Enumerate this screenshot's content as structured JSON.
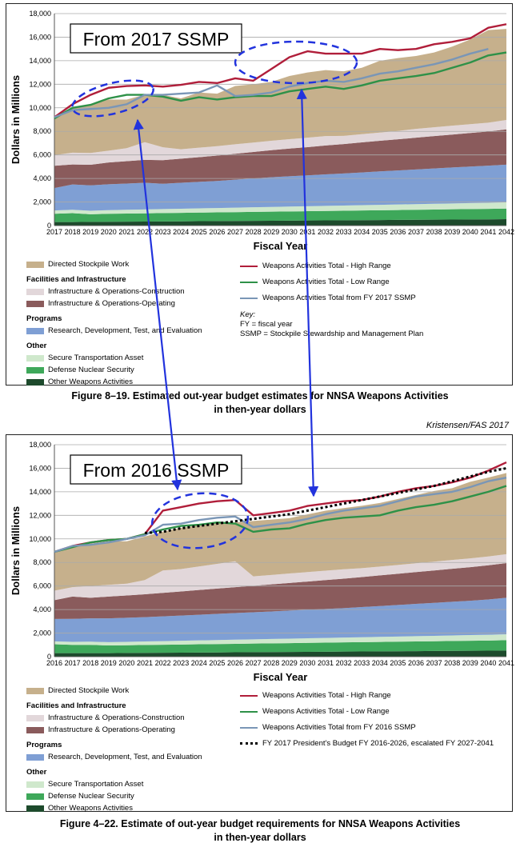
{
  "credit": "Kristensen/FAS 2017",
  "charts": [
    {
      "stamp": "From 2017 SSMP",
      "caption_line1": "Figure 8–19.  Estimated out-year budget estimates for NNSA Weapons Activities",
      "caption_line2": "in then-year dollars",
      "ylabel": "Dollars in Millions",
      "xlabel": "Fiscal Year",
      "legend": {
        "dsw": "Directed Stockpile Work",
        "fac_header": "Facilities and Infrastructure",
        "ioc": "Infrastructure & Operations-Construction",
        "ioo": "Infrastructure & Operations-Operating",
        "prog_header": "Programs",
        "rdte": "Research, Development, Test, and Evaluation",
        "other_header": "Other",
        "sta": "Secure Transportation Asset",
        "dns": "Defense Nuclear Security",
        "owa": "Other Weapons Activities",
        "high": "Weapons Activities Total - High Range",
        "low": "Weapons Activities Total - Low Range",
        "ssmp": "Weapons Activities Total from FY 2017 SSMP",
        "key_title": "Key:",
        "key_fy": "FY = fiscal year",
        "key_ssmp": "SSMP = Stockpile Stewardship and Management Plan"
      }
    },
    {
      "stamp": "From 2016 SSMP",
      "caption_line1": "Figure 4–22.  Estimate of out-year budget requirements for NNSA Weapons Activities",
      "caption_line2": "in then-year dollars",
      "ylabel": "Dollars in Millions",
      "xlabel": "Fiscal Year",
      "legend": {
        "dsw": "Directed Stockpile Work",
        "fac_header": "Facilities and Infrastructure",
        "ioc": "Infrastructure & Operations-Construction",
        "ioo": "Infrastructure & Operations-Operating",
        "prog_header": "Programs",
        "rdte": "Research, Development, Test, and Evaluation",
        "other_header": "Other",
        "sta": "Secure Transportation Asset",
        "dns": "Defense Nuclear Security",
        "owa": "Other Weapons Activities",
        "high": "Weapons Activities Total - High Range",
        "low": "Weapons Activities Total - Low Range",
        "ssmp": "Weapons Activities Total from FY 2016 SSMP",
        "pb": "FY 2017 President's Budget FY 2016-2026, escalated FY 2027-2041"
      }
    }
  ],
  "colors": {
    "owa": "#1d4a2c",
    "dns": "#3ea85a",
    "sta": "#cfe8cc",
    "rdte": "#7f9fd4",
    "ioo": "#8a5b5c",
    "ioc": "#e2d7da",
    "dsw": "#c6b08c",
    "high": "#b01e3a",
    "low": "#2e9148",
    "ssmp": "#7a96b6",
    "pb": "#000000",
    "annotation": "#2233dd",
    "grid": "#aaaaaa"
  },
  "chart_data": [
    {
      "type": "area",
      "title": "",
      "xlabel": "Fiscal Year",
      "ylabel": "Dollars in Millions",
      "ylim": [
        0,
        18000
      ],
      "yticks": [
        "0",
        "2,000",
        "4,000",
        "6,000",
        "8,000",
        "10,000",
        "12,000",
        "14,000",
        "16,000",
        "18,000"
      ],
      "grid": true,
      "x": [
        "2017",
        "2018",
        "2019",
        "2020",
        "2021",
        "2022",
        "2023",
        "2024",
        "2025",
        "2026",
        "2027",
        "2028",
        "2029",
        "2030",
        "2031",
        "2032",
        "2033",
        "2034",
        "2035",
        "2036",
        "2037",
        "2038",
        "2039",
        "2040",
        "2041",
        "2042"
      ],
      "stacked_series": [
        {
          "name": "Other Weapons Activities",
          "key": "owa",
          "values": [
            300,
            300,
            310,
            320,
            330,
            340,
            350,
            360,
            370,
            380,
            390,
            400,
            410,
            420,
            430,
            440,
            450,
            460,
            470,
            480,
            490,
            500,
            510,
            520,
            530,
            540
          ]
        },
        {
          "name": "Defense Nuclear Security",
          "key": "dns",
          "values": [
            700,
            750,
            650,
            680,
            690,
            700,
            710,
            720,
            730,
            740,
            750,
            760,
            770,
            780,
            790,
            800,
            810,
            820,
            830,
            840,
            850,
            860,
            870,
            880,
            890,
            900
          ]
        },
        {
          "name": "Secure Transportation Asset",
          "key": "sta",
          "values": [
            280,
            290,
            300,
            310,
            320,
            330,
            340,
            350,
            360,
            370,
            380,
            390,
            400,
            410,
            420,
            430,
            440,
            450,
            460,
            470,
            480,
            490,
            500,
            510,
            520,
            530
          ]
        },
        {
          "name": "Research, Development, Test, and Evaluation",
          "key": "rdte",
          "values": [
            1900,
            2150,
            2150,
            2200,
            2230,
            2260,
            2150,
            2200,
            2250,
            2300,
            2380,
            2450,
            2520,
            2580,
            2620,
            2680,
            2720,
            2780,
            2840,
            2890,
            2940,
            3000,
            3050,
            3100,
            3150,
            3200
          ]
        },
        {
          "name": "Infrastructure & Operations-Operating",
          "key": "ioo",
          "values": [
            1900,
            1700,
            1750,
            1850,
            1900,
            1950,
            2000,
            2050,
            2100,
            2150,
            2200,
            2250,
            2300,
            2350,
            2400,
            2450,
            2500,
            2550,
            2600,
            2650,
            2700,
            2750,
            2800,
            2850,
            2900,
            3000
          ]
        },
        {
          "name": "Infrastructure & Operations-Construction",
          "key": "ioc",
          "values": [
            900,
            1000,
            1000,
            1000,
            1100,
            1500,
            1100,
            800,
            800,
            800,
            800,
            800,
            800,
            800,
            800,
            800,
            700,
            700,
            700,
            700,
            750,
            750,
            750,
            750,
            750,
            800
          ]
        },
        {
          "name": "Directed Stockpile Work",
          "key": "dsw",
          "values": [
            3200,
            3800,
            4140,
            4340,
            4130,
            4030,
            4450,
            4320,
            4690,
            4460,
            4950,
            4950,
            5000,
            5360,
            5540,
            5600,
            5480,
            5640,
            6090,
            6190,
            6190,
            6350,
            6720,
            7190,
            7860,
            7730
          ]
        }
      ],
      "line_series": [
        {
          "name": "Weapons Activities Total - High Range",
          "key": "high",
          "values": [
            9200,
            10300,
            11100,
            11700,
            11850,
            11900,
            11800,
            11950,
            12200,
            12100,
            12500,
            12300,
            13300,
            14300,
            14800,
            14600,
            14600,
            14600,
            15000,
            14900,
            15000,
            15400,
            15600,
            15900,
            16800,
            17100
          ]
        },
        {
          "name": "Weapons Activities Total - Low Range",
          "key": "low",
          "values": [
            9100,
            10000,
            10250,
            10800,
            11100,
            11100,
            10950,
            10600,
            10900,
            10700,
            10900,
            11000,
            11000,
            11400,
            11600,
            11800,
            11600,
            11900,
            12300,
            12500,
            12700,
            12950,
            13400,
            13850,
            14450,
            14700
          ]
        },
        {
          "name": "Weapons Activities Total from FY 2017 SSMP",
          "key": "ssmp",
          "values": [
            9200,
            9800,
            9900,
            10000,
            10300,
            11100,
            11100,
            11200,
            11300,
            11900,
            11000,
            11100,
            11300,
            11800,
            12100,
            12300,
            12200,
            12500,
            12900,
            13100,
            13400,
            13700,
            14100,
            14600,
            15000,
            null
          ]
        }
      ],
      "annotations": [
        "ellipse around FY2018-2023 totals",
        "ellipse around FY2027-2034 totals"
      ]
    },
    {
      "type": "area",
      "title": "",
      "xlabel": "Fiscal Year",
      "ylabel": "Dollars in Millions",
      "ylim": [
        0,
        18000
      ],
      "yticks": [
        "0",
        "2,000",
        "4,000",
        "6,000",
        "8,000",
        "10,000",
        "12,000",
        "14,000",
        "16,000",
        "18,000"
      ],
      "grid": true,
      "x": [
        "2016",
        "2017",
        "2018",
        "2019",
        "2020",
        "2021",
        "2022",
        "2023",
        "2024",
        "2025",
        "2026",
        "2027",
        "2028",
        "2029",
        "2030",
        "2031",
        "2032",
        "2033",
        "2034",
        "2035",
        "2036",
        "2037",
        "2038",
        "2039",
        "2040",
        "2041"
      ],
      "stacked_series": [
        {
          "name": "Other Weapons Activities",
          "key": "owa",
          "values": [
            300,
            300,
            300,
            300,
            310,
            320,
            330,
            340,
            350,
            360,
            370,
            380,
            390,
            400,
            410,
            420,
            430,
            440,
            450,
            460,
            470,
            480,
            490,
            500,
            510,
            520
          ]
        },
        {
          "name": "Defense Nuclear Security",
          "key": "dns",
          "values": [
            750,
            700,
            700,
            650,
            660,
            670,
            680,
            690,
            700,
            710,
            720,
            730,
            740,
            750,
            760,
            770,
            780,
            790,
            800,
            810,
            820,
            830,
            840,
            850,
            860,
            880
          ]
        },
        {
          "name": "Secure Transportation Asset",
          "key": "sta",
          "values": [
            250,
            260,
            270,
            280,
            290,
            300,
            310,
            320,
            330,
            340,
            350,
            360,
            370,
            380,
            390,
            400,
            410,
            420,
            430,
            440,
            450,
            460,
            470,
            480,
            490,
            500
          ]
        },
        {
          "name": "Research, Development, Test, and Evaluation",
          "key": "rdte",
          "values": [
            1900,
            1950,
            1980,
            2020,
            2040,
            2060,
            2100,
            2140,
            2180,
            2220,
            2260,
            2300,
            2340,
            2380,
            2420,
            2460,
            2500,
            2560,
            2620,
            2680,
            2740,
            2800,
            2860,
            2920,
            3000,
            3100
          ]
        },
        {
          "name": "Infrastructure & Operations-Operating",
          "key": "ioo",
          "values": [
            1600,
            1890,
            1750,
            1850,
            1900,
            1950,
            2000,
            2050,
            2100,
            2150,
            2200,
            2250,
            2300,
            2350,
            2400,
            2450,
            2500,
            2550,
            2600,
            2650,
            2700,
            2750,
            2800,
            2850,
            2900,
            2950
          ]
        },
        {
          "name": "Infrastructure & Operations-Construction",
          "key": "ioc",
          "values": [
            800,
            800,
            1000,
            1000,
            1000,
            1200,
            1900,
            1900,
            2000,
            2100,
            2200,
            800,
            800,
            800,
            800,
            800,
            800,
            750,
            750,
            750,
            750,
            750,
            750,
            750,
            750,
            750
          ]
        },
        {
          "name": "Directed Stockpile Work",
          "key": "dsw",
          "values": [
            3300,
            3500,
            3600,
            3700,
            3600,
            3700,
            3300,
            3500,
            3500,
            3600,
            3300,
            4700,
            4700,
            4700,
            4900,
            5100,
            5200,
            5300,
            5400,
            5600,
            5800,
            6000,
            6100,
            6500,
            6700,
            6900
          ]
        }
      ],
      "line_series": [
        {
          "name": "Weapons Activities Total - High Range",
          "key": "high",
          "values": [
            8900,
            9400,
            9700,
            9900,
            10000,
            10400,
            12400,
            12700,
            13000,
            13200,
            13300,
            12000,
            12200,
            12400,
            12800,
            13000,
            13200,
            13300,
            13600,
            14000,
            14300,
            14500,
            14800,
            15200,
            15800,
            16500
          ]
        },
        {
          "name": "Weapons Activities Total - Low Range",
          "key": "low",
          "values": [
            8900,
            9300,
            9700,
            9900,
            10000,
            10400,
            10800,
            11100,
            11200,
            11400,
            11300,
            10600,
            10800,
            10900,
            11300,
            11600,
            11800,
            11900,
            12000,
            12400,
            12700,
            12900,
            13200,
            13600,
            14000,
            14500
          ]
        },
        {
          "name": "Weapons Activities Total from FY 2016 SSMP",
          "key": "ssmp",
          "values": [
            8900,
            9400,
            9500,
            9700,
            10000,
            10300,
            11200,
            11300,
            11600,
            11800,
            11900,
            11000,
            11200,
            11400,
            11700,
            12100,
            12400,
            12600,
            12800,
            13200,
            13600,
            13800,
            14000,
            14400,
            14900,
            15200
          ]
        },
        {
          "name": "FY 2017 President's Budget FY 2016-2026, escalated FY 2027-2041",
          "key": "pb",
          "values": [
            null,
            null,
            null,
            null,
            null,
            10500,
            10600,
            10900,
            11100,
            11300,
            11500,
            11700,
            11900,
            12100,
            12400,
            12700,
            13000,
            13300,
            13600,
            13900,
            14200,
            14500,
            14900,
            15300,
            15700,
            16000
          ]
        }
      ],
      "annotations": [
        "ellipse around FY2021-2027 totals"
      ]
    }
  ]
}
